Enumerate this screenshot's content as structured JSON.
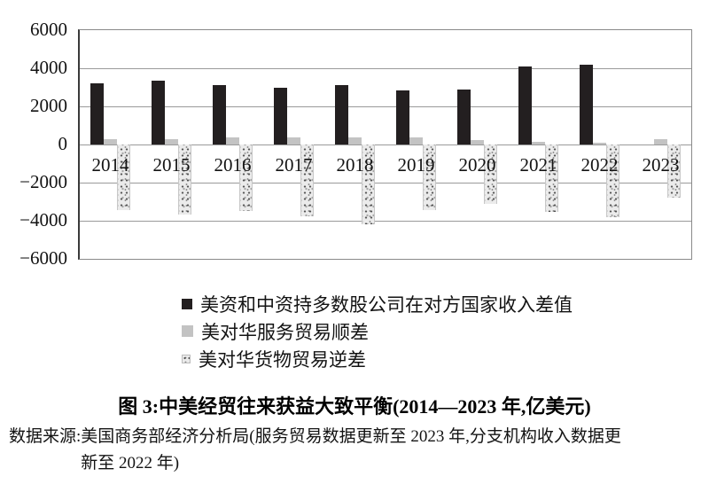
{
  "chart_data": {
    "type": "bar",
    "title": "图 3:中美经贸往来获益大致平衡(2014—2023 年,亿美元)",
    "xlabel": "",
    "ylabel": "",
    "ylim": [
      -6000,
      6000
    ],
    "grid": true,
    "legend_position": "below",
    "categories": [
      "2014",
      "2015",
      "2016",
      "2017",
      "2018",
      "2019",
      "2020",
      "2021",
      "2022",
      "2023"
    ],
    "yticks": [
      {
        "label": "6000",
        "value": 6000
      },
      {
        "label": "4000",
        "value": 4000
      },
      {
        "label": "2000",
        "value": 2000
      },
      {
        "label": "0",
        "value": 0
      },
      {
        "label": "−2000",
        "value": -2000
      },
      {
        "label": "−4000",
        "value": -4000
      },
      {
        "label": "−6000",
        "value": -6000
      }
    ],
    "series": [
      {
        "key": "income-diff",
        "name": "美资和中资持多数股公司在对方国家收入差值",
        "style": "black",
        "color": "#231f20",
        "values": [
          3200,
          3350,
          3100,
          3000,
          3100,
          2850,
          2880,
          4100,
          4200,
          null
        ]
      },
      {
        "key": "services-surplus",
        "name": "美对华服务贸易顺差",
        "style": "gray",
        "color": "#c3c3c3",
        "values": [
          280,
          300,
          370,
          385,
          390,
          380,
          250,
          150,
          110,
          270
        ]
      },
      {
        "key": "goods-deficit",
        "name": "美对华货物贸易逆差",
        "style": "speckled",
        "color": "#ebebeb",
        "values": [
          -3430,
          -3670,
          -3470,
          -3750,
          -4180,
          -3450,
          -3100,
          -3550,
          -3830,
          -2800
        ]
      }
    ]
  },
  "caption": {
    "title": "图 3:中美经贸往来获益大致平衡(2014—2023 年,亿美元)"
  },
  "source": {
    "label": "数据来源:",
    "line1": "美国商务部经济分析局(服务贸易数据更新至 2023 年,分支机构收入数据更",
    "line2": "新至 2022 年)"
  }
}
